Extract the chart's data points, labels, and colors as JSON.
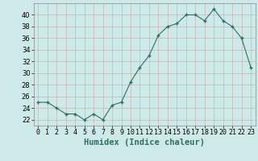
{
  "x": [
    0,
    1,
    2,
    3,
    4,
    5,
    6,
    7,
    8,
    9,
    10,
    11,
    12,
    13,
    14,
    15,
    16,
    17,
    18,
    19,
    20,
    21,
    22,
    23
  ],
  "y": [
    25,
    25,
    24,
    23,
    23,
    22,
    23,
    22,
    24.5,
    25,
    28.5,
    31,
    33,
    36.5,
    38,
    38.5,
    40,
    40,
    39,
    41,
    39,
    38,
    36,
    31
  ],
  "line_color": "#2d6e63",
  "marker_color": "#2d6e63",
  "bg_color": "#ceeae8",
  "grid_color": "#b8d4d2",
  "xlabel": "Humidex (Indice chaleur)",
  "ylim": [
    21,
    42
  ],
  "yticks": [
    22,
    24,
    26,
    28,
    30,
    32,
    34,
    36,
    38,
    40
  ],
  "xlim": [
    -0.5,
    23.5
  ],
  "xlabel_fontsize": 7.5,
  "tick_fontsize": 6
}
